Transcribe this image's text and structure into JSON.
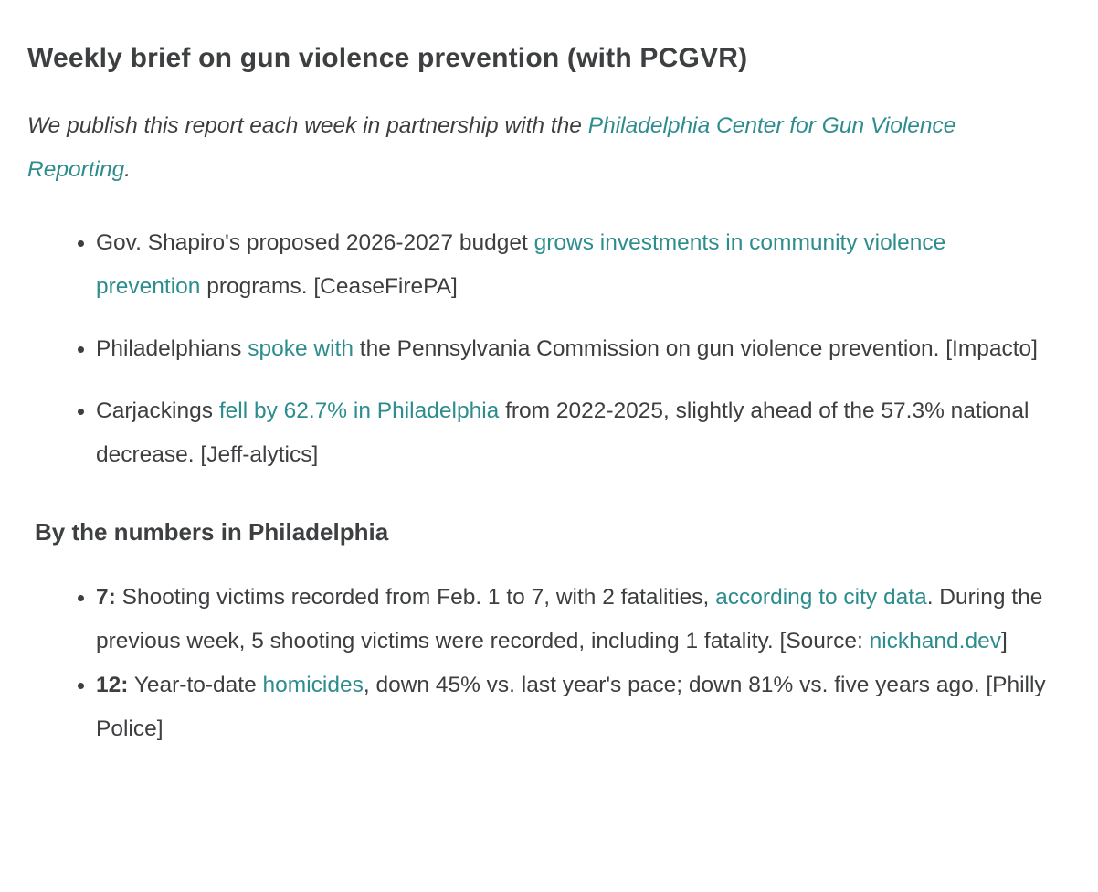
{
  "theme": {
    "background": "#ffffff",
    "text_color": "#3c3e40",
    "link_color": "#2d8c8d"
  },
  "heading": "Weekly brief on gun violence prevention (with PCGVR)",
  "intro": {
    "pre": "We publish this report each week in partnership with the ",
    "link": "Philadelphia Center for Gun Violence Reporting",
    "post": "."
  },
  "news_list": [
    {
      "pre": "Gov. Shapiro's proposed 2026-2027 budget ",
      "link": "grows investments in community violence prevention",
      "post": " programs. [CeaseFirePA]"
    },
    {
      "pre": "Philadelphians ",
      "link": "spoke with",
      "post": " the Pennsylvania Commission on gun violence prevention. [Impacto]"
    },
    {
      "pre": "Carjackings ",
      "link": "fell by 62.7% in Philadelphia",
      "post": " from 2022-2025, slightly ahead of the 57.3% national decrease. [Jeff-alytics]"
    }
  ],
  "subheading": "By the numbers in Philadelphia",
  "numbers_list": [
    {
      "lead": "7:",
      "pre": " Shooting victims recorded from Feb. 1 to 7, with 2 fatalities, ",
      "link1": "according to city data",
      "mid": ". During the previous week, 5 shooting victims were recorded, including 1 fatality. [Source: ",
      "link2": "nickhand.dev",
      "post": "]"
    },
    {
      "lead": "12:",
      "pre": " Year-to-date ",
      "link1": "homicides",
      "mid": ", down 45% vs. last year's pace; down 81% vs. five years ago. [Philly Police]",
      "link2": "",
      "post": ""
    }
  ]
}
